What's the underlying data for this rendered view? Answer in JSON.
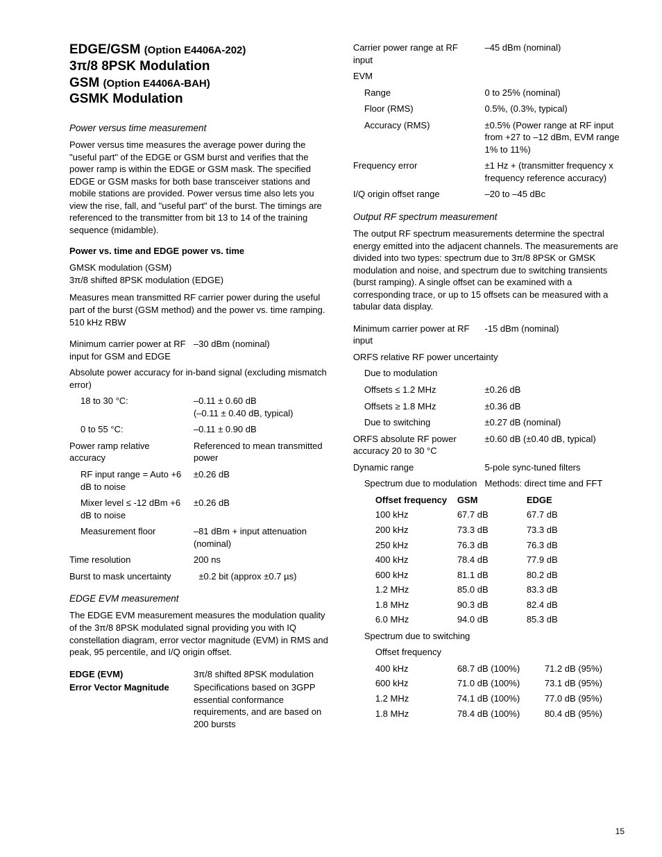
{
  "pageNumber": "15",
  "left": {
    "title": {
      "l1a": "EDGE/GSM ",
      "l1b": "(Option E4406A-202)",
      "l2": "3π/8 8PSK Modulation",
      "l3a": "GSM ",
      "l3b": "(Option E4406A-BAH)",
      "l4": "GSMK Modulation"
    },
    "pvt": {
      "heading": "Power versus time measurement",
      "para": "Power versus time measures the average power during the \"useful part\" of the EDGE or GSM burst and verifies that the power ramp is within the EDGE or GSM mask. The specified EDGE or GSM masks for both base transceiver stations and mobile stations are provided. Power versus time also lets you view the rise, fall, and \"useful part\" of the burst. The timings are referenced to the transmitter from bit 13 to 14 of the training sequence (midamble).",
      "bold": "Power vs. time and EDGE power vs. time",
      "mod1": "GMSK modulation (GSM)",
      "mod2": "3π/8 shifted 8PSK modulation (EDGE)",
      "desc": "Measures mean transmitted RF carrier power during the useful part of the burst (GSM method) and the power vs. time ramping. 510 kHz RBW",
      "r1l": "Minimum carrier power at RF input for GSM and EDGE",
      "r1v": "–30 dBm (nominal)",
      "abs": "Absolute power accuracy for in-band signal (excluding mismatch error)",
      "a1l": "18 to 30 °C:",
      "a1v": "–0.11 ± 0.60 dB\n(–0.11 ± 0.40 dB, typical)",
      "a2l": "0 to 55 °C:",
      "a2v": "–0.11 ± 0.90 dB",
      "p1l": "Power ramp relative accuracy",
      "p1v": "Referenced to mean transmitted power",
      "p2l": "RF input range = Auto +6 dB to noise",
      "p2v": "±0.26 dB",
      "p3l": "Mixer level ≤ -12 dBm +6 dB to noise",
      "p3v": "±0.26 dB",
      "p4l": "Measurement floor",
      "p4v": "–81 dBm + input attenuation (nominal)",
      "trl": "Time resolution",
      "trv": "200 ns",
      "bml": "Burst to mask uncertainty",
      "bmv": "±0.2 bit (approx ±0.7 µs)"
    },
    "evm": {
      "heading": "EDGE EVM measurement",
      "para": "The EDGE EVM measurement measures the modulation quality of the 3π/8 8PSK modulated signal providing you with IQ constellation diagram, error vector magnitude (EVM) in RMS and peak, 95 percentile, and I/Q origin offset.",
      "b1": "EDGE (EVM)",
      "b1v": "3π/8 shifted 8PSK modulation",
      "b2": "Error Vector Magnitude",
      "b2v": "Specifications based on 3GPP essential conformance requirements, and are based on 200 bursts"
    }
  },
  "right": {
    "top": {
      "r1l": "Carrier power range at RF input",
      "r1v": "–45 dBm (nominal)",
      "evm": "EVM",
      "e1l": "Range",
      "e1v": "0 to 25% (nominal)",
      "e2l": "Floor (RMS)",
      "e2v": "0.5%, (0.3%, typical)",
      "e3l": "Accuracy (RMS)",
      "e3v": "±0.5% (Power range at RF input from +27 to –12 dBm, EVM range 1% to 11%)",
      "fel": "Frequency error",
      "fev": "±1 Hz + (transmitter frequency x frequency reference accuracy)",
      "iql": "I/Q origin offset range",
      "iqv": "–20 to –45 dBc"
    },
    "orfs": {
      "heading": "Output RF spectrum measurement",
      "para": "The output RF spectrum measurements determine the spectral energy emitted into the adjacent channels. The measurements are divided into two types: spectrum due to 3π/8 8PSK or GMSK modulation and noise, and spectrum due to switching transients (burst ramping). A single offset can be examined with a corresponding trace, or up to 15 offsets can be measured with a tabular data display.",
      "m1l": "Minimum carrier power at RF input",
      "m1v": "-15 dBm (nominal)",
      "rel": "ORFS relative RF power uncertainty",
      "d1": "Due to modulation",
      "o1l": "Offsets ≤ 1.2 MHz",
      "o1v": "±0.26 dB",
      "o2l": "Offsets ≥ 1.8 MHz",
      "o2v": "±0.36 dB",
      "swl": "Due to switching",
      "swv": "±0.27 dB (nominal)",
      "abl": "ORFS absolute RF power accuracy 20 to 30 °C",
      "abv": "±0.60 dB (±0.40 dB, typical)",
      "drl": "Dynamic range",
      "drv": "5-pole sync-tuned filters",
      "sml": "Spectrum due to modulation",
      "smv": "Methods: direct time and FFT",
      "tbl1": {
        "h1": "Offset frequency",
        "h2": "GSM",
        "h3": "EDGE",
        "rows": [
          [
            "100 kHz",
            "67.7 dB",
            "67.7 dB"
          ],
          [
            "200 kHz",
            "73.3 dB",
            "73.3 dB"
          ],
          [
            "250 kHz",
            "76.3 dB",
            "76.3 dB"
          ],
          [
            "400 kHz",
            "78.4 dB",
            "77.9 dB"
          ],
          [
            "600 kHz",
            "81.1 dB",
            "80.2 dB"
          ],
          [
            "1.2 MHz",
            "85.0 dB",
            "83.3 dB"
          ],
          [
            "1.8 MHz",
            "90.3 dB",
            "82.4 dB"
          ],
          [
            "6.0 MHz",
            "94.0 dB",
            "85.3 dB"
          ]
        ]
      },
      "sws": "Spectrum due to switching",
      "hdr2": "Offset frequency",
      "tbl2": {
        "rows": [
          [
            "400 kHz",
            "68.7 dB (100%)",
            "71.2 dB (95%)"
          ],
          [
            "600 kHz",
            "71.0 dB (100%)",
            "73.1 dB (95%)"
          ],
          [
            "1.2 MHz",
            "74.1 dB (100%)",
            "77.0 dB (95%)"
          ],
          [
            "1.8 MHz",
            "78.4 dB (100%)",
            "80.4 dB (95%)"
          ]
        ]
      }
    }
  }
}
